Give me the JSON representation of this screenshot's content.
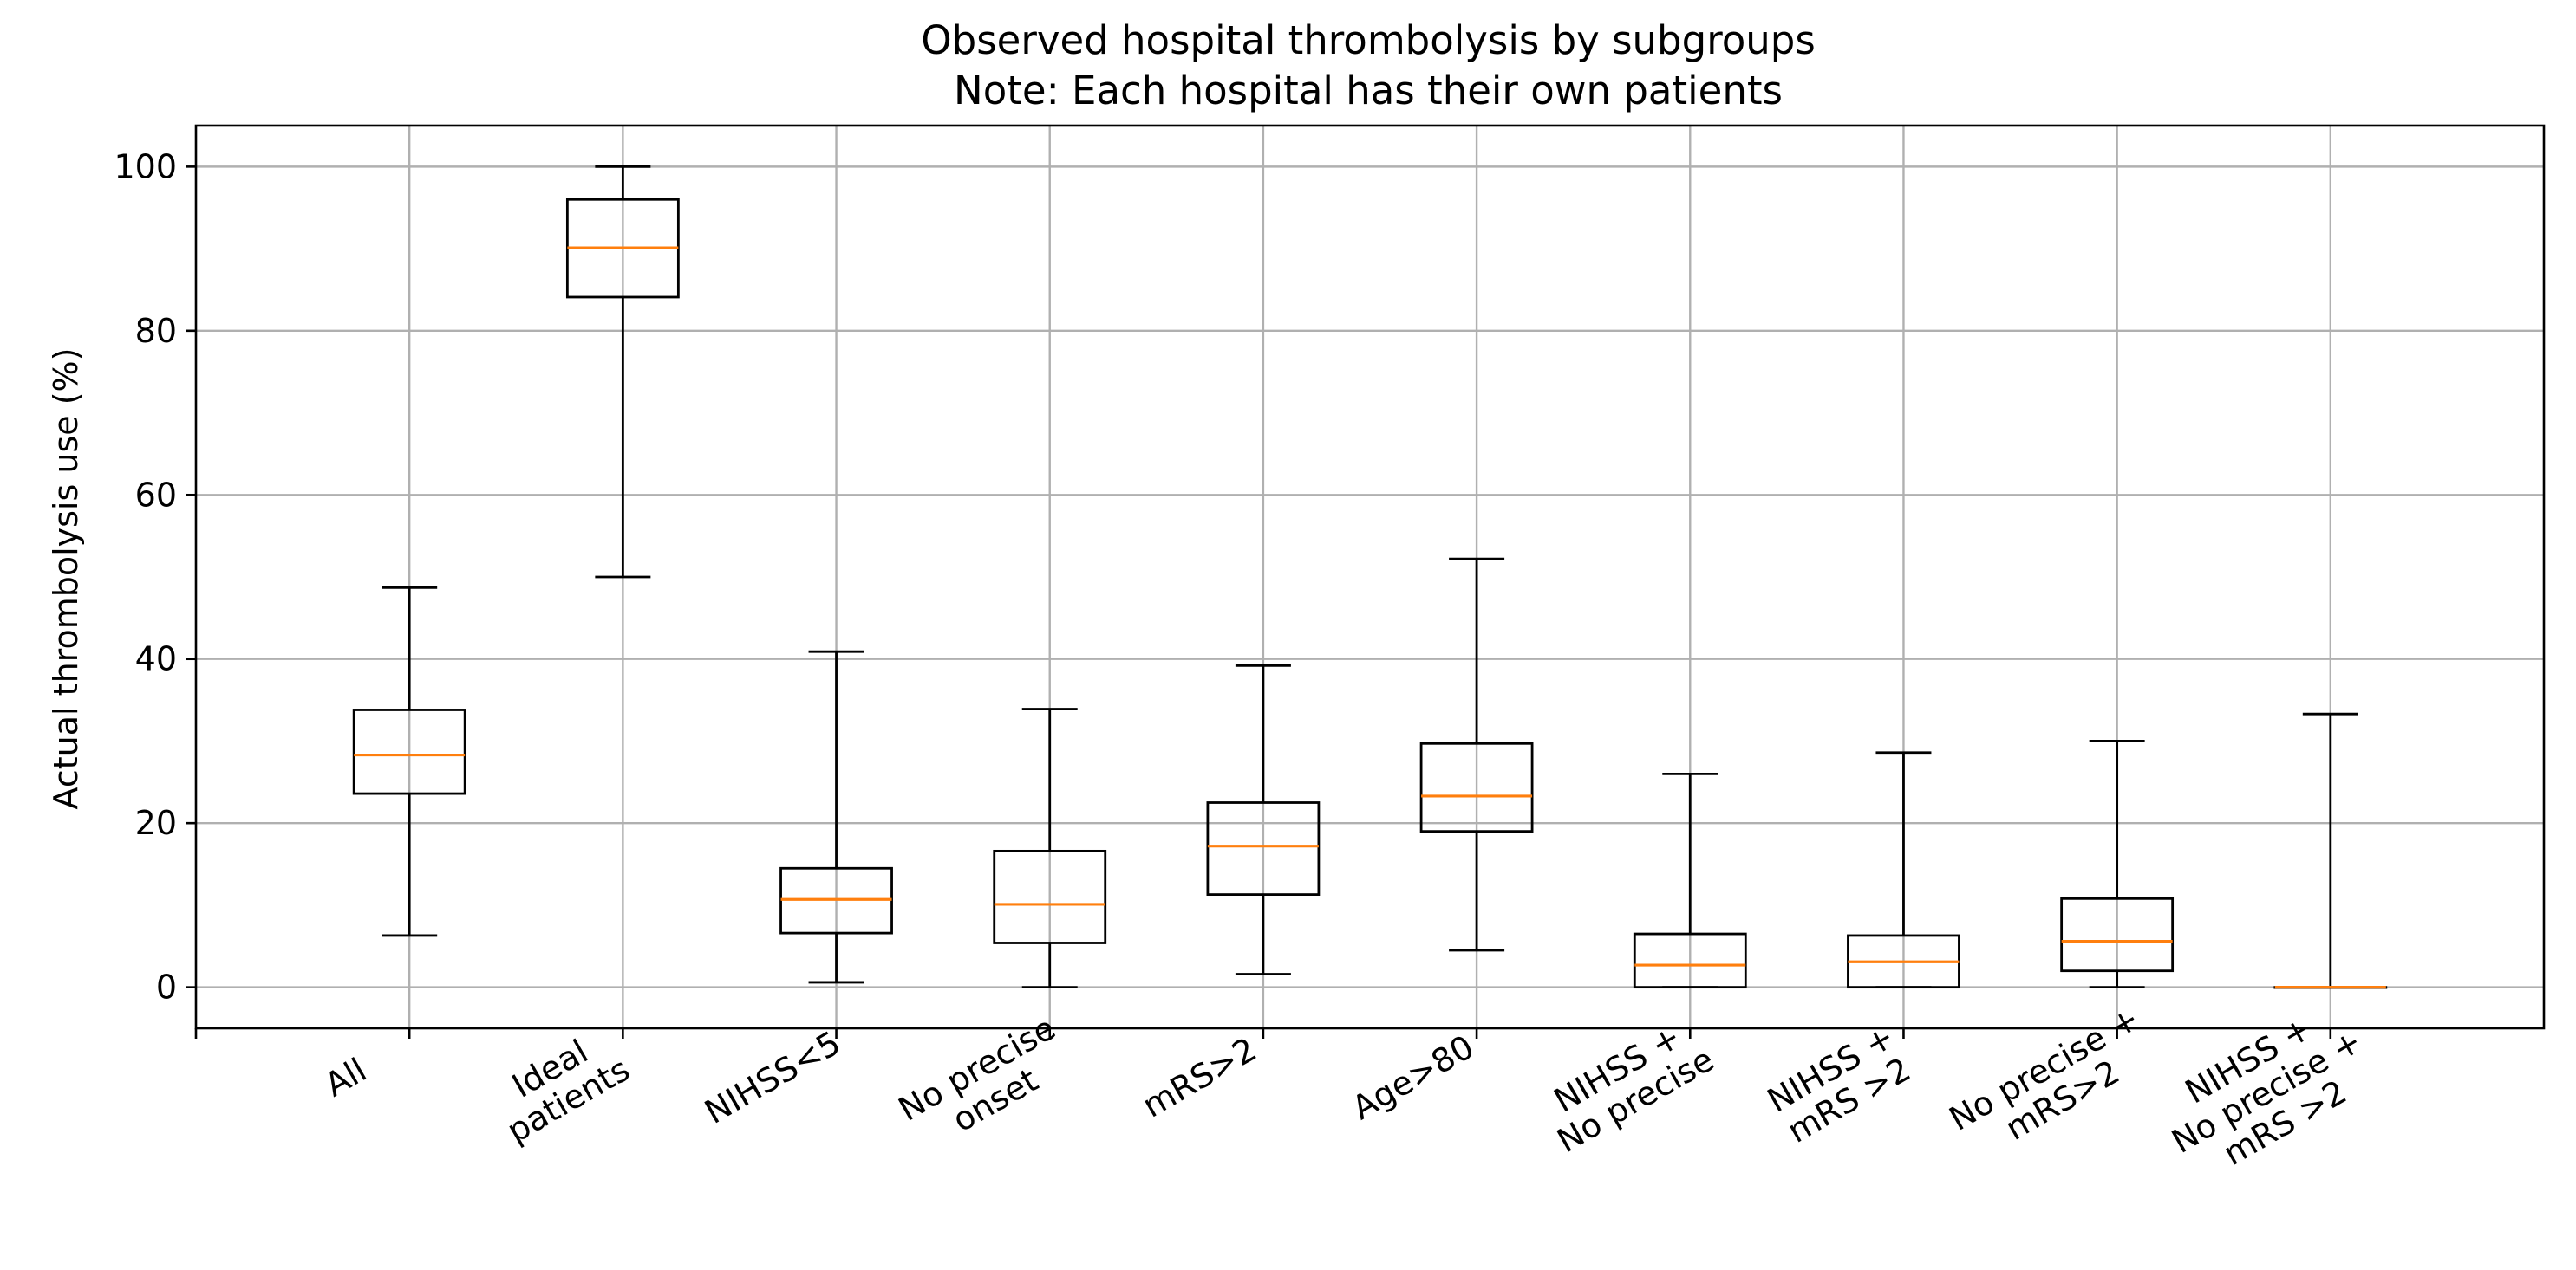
{
  "chart_data": {
    "type": "box",
    "title": "Observed hospital thrombolysis by subgroups",
    "subtitle": "Note: Each hospital has their own patients",
    "ylabel": "Actual thrombolysis use (%)",
    "xlabel": "",
    "ylim": [
      -5,
      105
    ],
    "yticks": [
      0,
      20,
      40,
      60,
      80,
      100
    ],
    "grid": true,
    "colors": {
      "box": "#000000",
      "median": "#ff7f0e",
      "grid": "#b0b0b0"
    },
    "categories": [
      [
        "All"
      ],
      [
        "Ideal",
        "patients"
      ],
      [
        "NIHSS<5"
      ],
      [
        "No precise",
        "onset"
      ],
      [
        "mRS>2"
      ],
      [
        "Age>80"
      ],
      [
        "NIHSS +",
        "No precise"
      ],
      [
        "NIHSS +",
        "mRS >2"
      ],
      [
        "No precise +",
        "mRS>2"
      ],
      [
        "NIHSS +",
        "No precise +",
        "mRS >2"
      ]
    ],
    "boxes": [
      {
        "whisker_low": 6.3,
        "q1": 23.6,
        "median": 28.3,
        "q3": 33.8,
        "whisker_high": 48.7
      },
      {
        "whisker_low": 50.0,
        "q1": 84.1,
        "median": 90.1,
        "q3": 96.0,
        "whisker_high": 100.0
      },
      {
        "whisker_low": 0.6,
        "q1": 6.6,
        "median": 10.7,
        "q3": 14.5,
        "whisker_high": 40.9
      },
      {
        "whisker_low": 0.0,
        "q1": 5.4,
        "median": 10.1,
        "q3": 16.6,
        "whisker_high": 33.9
      },
      {
        "whisker_low": 1.6,
        "q1": 11.3,
        "median": 17.2,
        "q3": 22.5,
        "whisker_high": 39.2
      },
      {
        "whisker_low": 4.5,
        "q1": 19.0,
        "median": 23.3,
        "q3": 29.7,
        "whisker_high": 52.2
      },
      {
        "whisker_low": 0.0,
        "q1": 0.0,
        "median": 2.7,
        "q3": 6.5,
        "whisker_high": 26.0
      },
      {
        "whisker_low": 0.0,
        "q1": 0.0,
        "median": 3.1,
        "q3": 6.3,
        "whisker_high": 28.6
      },
      {
        "whisker_low": 0.0,
        "q1": 2.0,
        "median": 5.6,
        "q3": 10.8,
        "whisker_high": 30.0
      },
      {
        "whisker_low": 0.0,
        "q1": 0.0,
        "median": 0.0,
        "q3": 0.0,
        "whisker_high": 33.3
      }
    ]
  }
}
